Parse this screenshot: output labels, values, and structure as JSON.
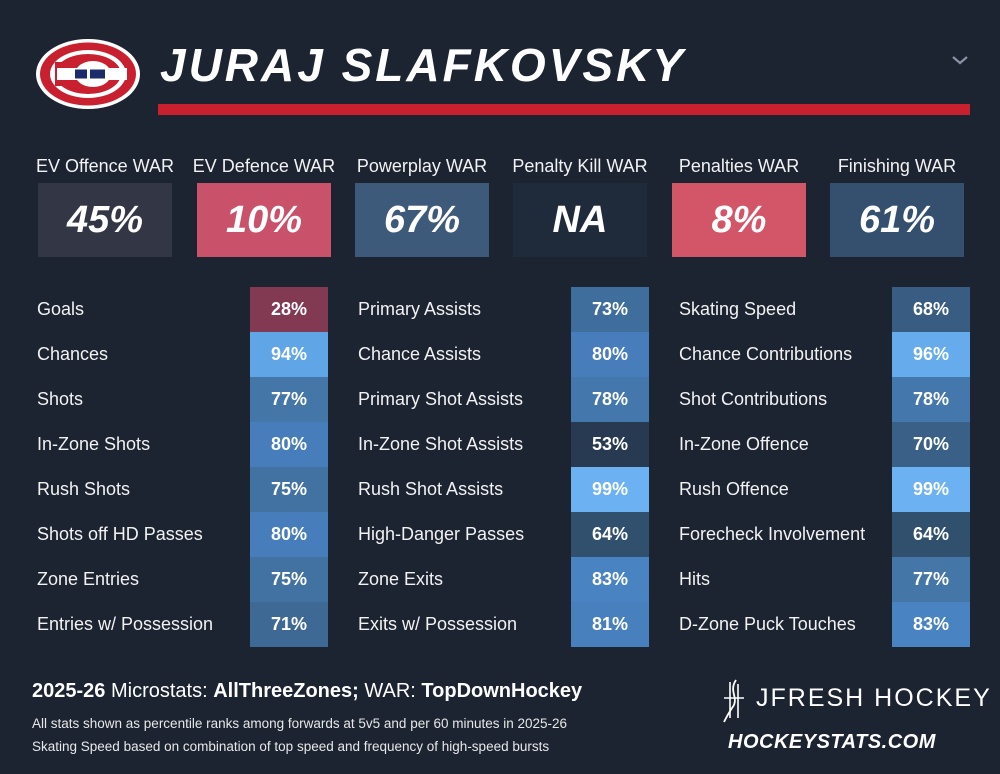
{
  "header": {
    "player_name": "JURAJ SLAFKOVSKY",
    "logo_icon": "canadiens-logo-icon",
    "accent_color": "#c8202f"
  },
  "war": [
    {
      "label": "EV Offence WAR",
      "value": "45%",
      "color": "#333645"
    },
    {
      "label": "EV Defence WAR",
      "value": "10%",
      "color": "#c9526a"
    },
    {
      "label": "Powerplay WAR",
      "value": "67%",
      "color": "#3e5a7a"
    },
    {
      "label": "Penalty Kill WAR",
      "value": "NA",
      "color": "#1f2a3b"
    },
    {
      "label": "Penalties WAR",
      "value": "8%",
      "color": "#d25568"
    },
    {
      "label": "Finishing WAR",
      "value": "61%",
      "color": "#34506e"
    }
  ],
  "columns": [
    {
      "rows": [
        {
          "label": "Goals",
          "value": "28%",
          "color": "#823a52"
        },
        {
          "label": "Chances",
          "value": "94%",
          "color": "#60a6e6"
        },
        {
          "label": "Shots",
          "value": "77%",
          "color": "#4476a8"
        },
        {
          "label": "In-Zone Shots",
          "value": "80%",
          "color": "#477dba"
        },
        {
          "label": "Rush Shots",
          "value": "75%",
          "color": "#4272a2"
        },
        {
          "label": "Shots off HD Passes",
          "value": "80%",
          "color": "#477dba"
        },
        {
          "label": "Zone Entries",
          "value": "75%",
          "color": "#4272a2"
        },
        {
          "label": "Entries w/ Possession",
          "value": "71%",
          "color": "#3e6995"
        }
      ]
    },
    {
      "rows": [
        {
          "label": "Primary Assists",
          "value": "73%",
          "color": "#3f6e9c"
        },
        {
          "label": "Chance Assists",
          "value": "80%",
          "color": "#477dba"
        },
        {
          "label": "Primary Shot Assists",
          "value": "78%",
          "color": "#4477ab"
        },
        {
          "label": "In-Zone Shot Assists",
          "value": "53%",
          "color": "#273a52"
        },
        {
          "label": "Rush Shot Assists",
          "value": "99%",
          "color": "#6cb2f2"
        },
        {
          "label": "High-Danger Passes",
          "value": "64%",
          "color": "#31506e"
        },
        {
          "label": "Zone Exits",
          "value": "83%",
          "color": "#4a83c2"
        },
        {
          "label": "Exits w/ Possession",
          "value": "81%",
          "color": "#487fbd"
        }
      ]
    },
    {
      "rows": [
        {
          "label": "Skating Speed",
          "value": "68%",
          "color": "#385c82"
        },
        {
          "label": "Chance Contributions",
          "value": "96%",
          "color": "#66acec"
        },
        {
          "label": "Shot Contributions",
          "value": "78%",
          "color": "#4477ab"
        },
        {
          "label": "In-Zone Offence",
          "value": "70%",
          "color": "#3a6088"
        },
        {
          "label": "Rush Offence",
          "value": "99%",
          "color": "#6cb2f2"
        },
        {
          "label": "Forecheck Involvement",
          "value": "64%",
          "color": "#31506e"
        },
        {
          "label": "Hits",
          "value": "77%",
          "color": "#4476a8"
        },
        {
          "label": "D-Zone Puck Touches",
          "value": "83%",
          "color": "#4a83c2"
        }
      ]
    }
  ],
  "footer": {
    "season": "2025-26",
    "microstats_label": "Microstats:",
    "microstats_source": "AllThreeZones;",
    "war_label": "WAR:",
    "war_source": "TopDownHockey",
    "note1": "All stats shown as percentile ranks among forwards at 5v5 and per 60 minutes in 2025-26",
    "note2": "Skating Speed based on combination of top speed and frequency of high-speed bursts",
    "brand": "JFRESH HOCKEY",
    "site": "HOCKEYSTATS.COM"
  }
}
